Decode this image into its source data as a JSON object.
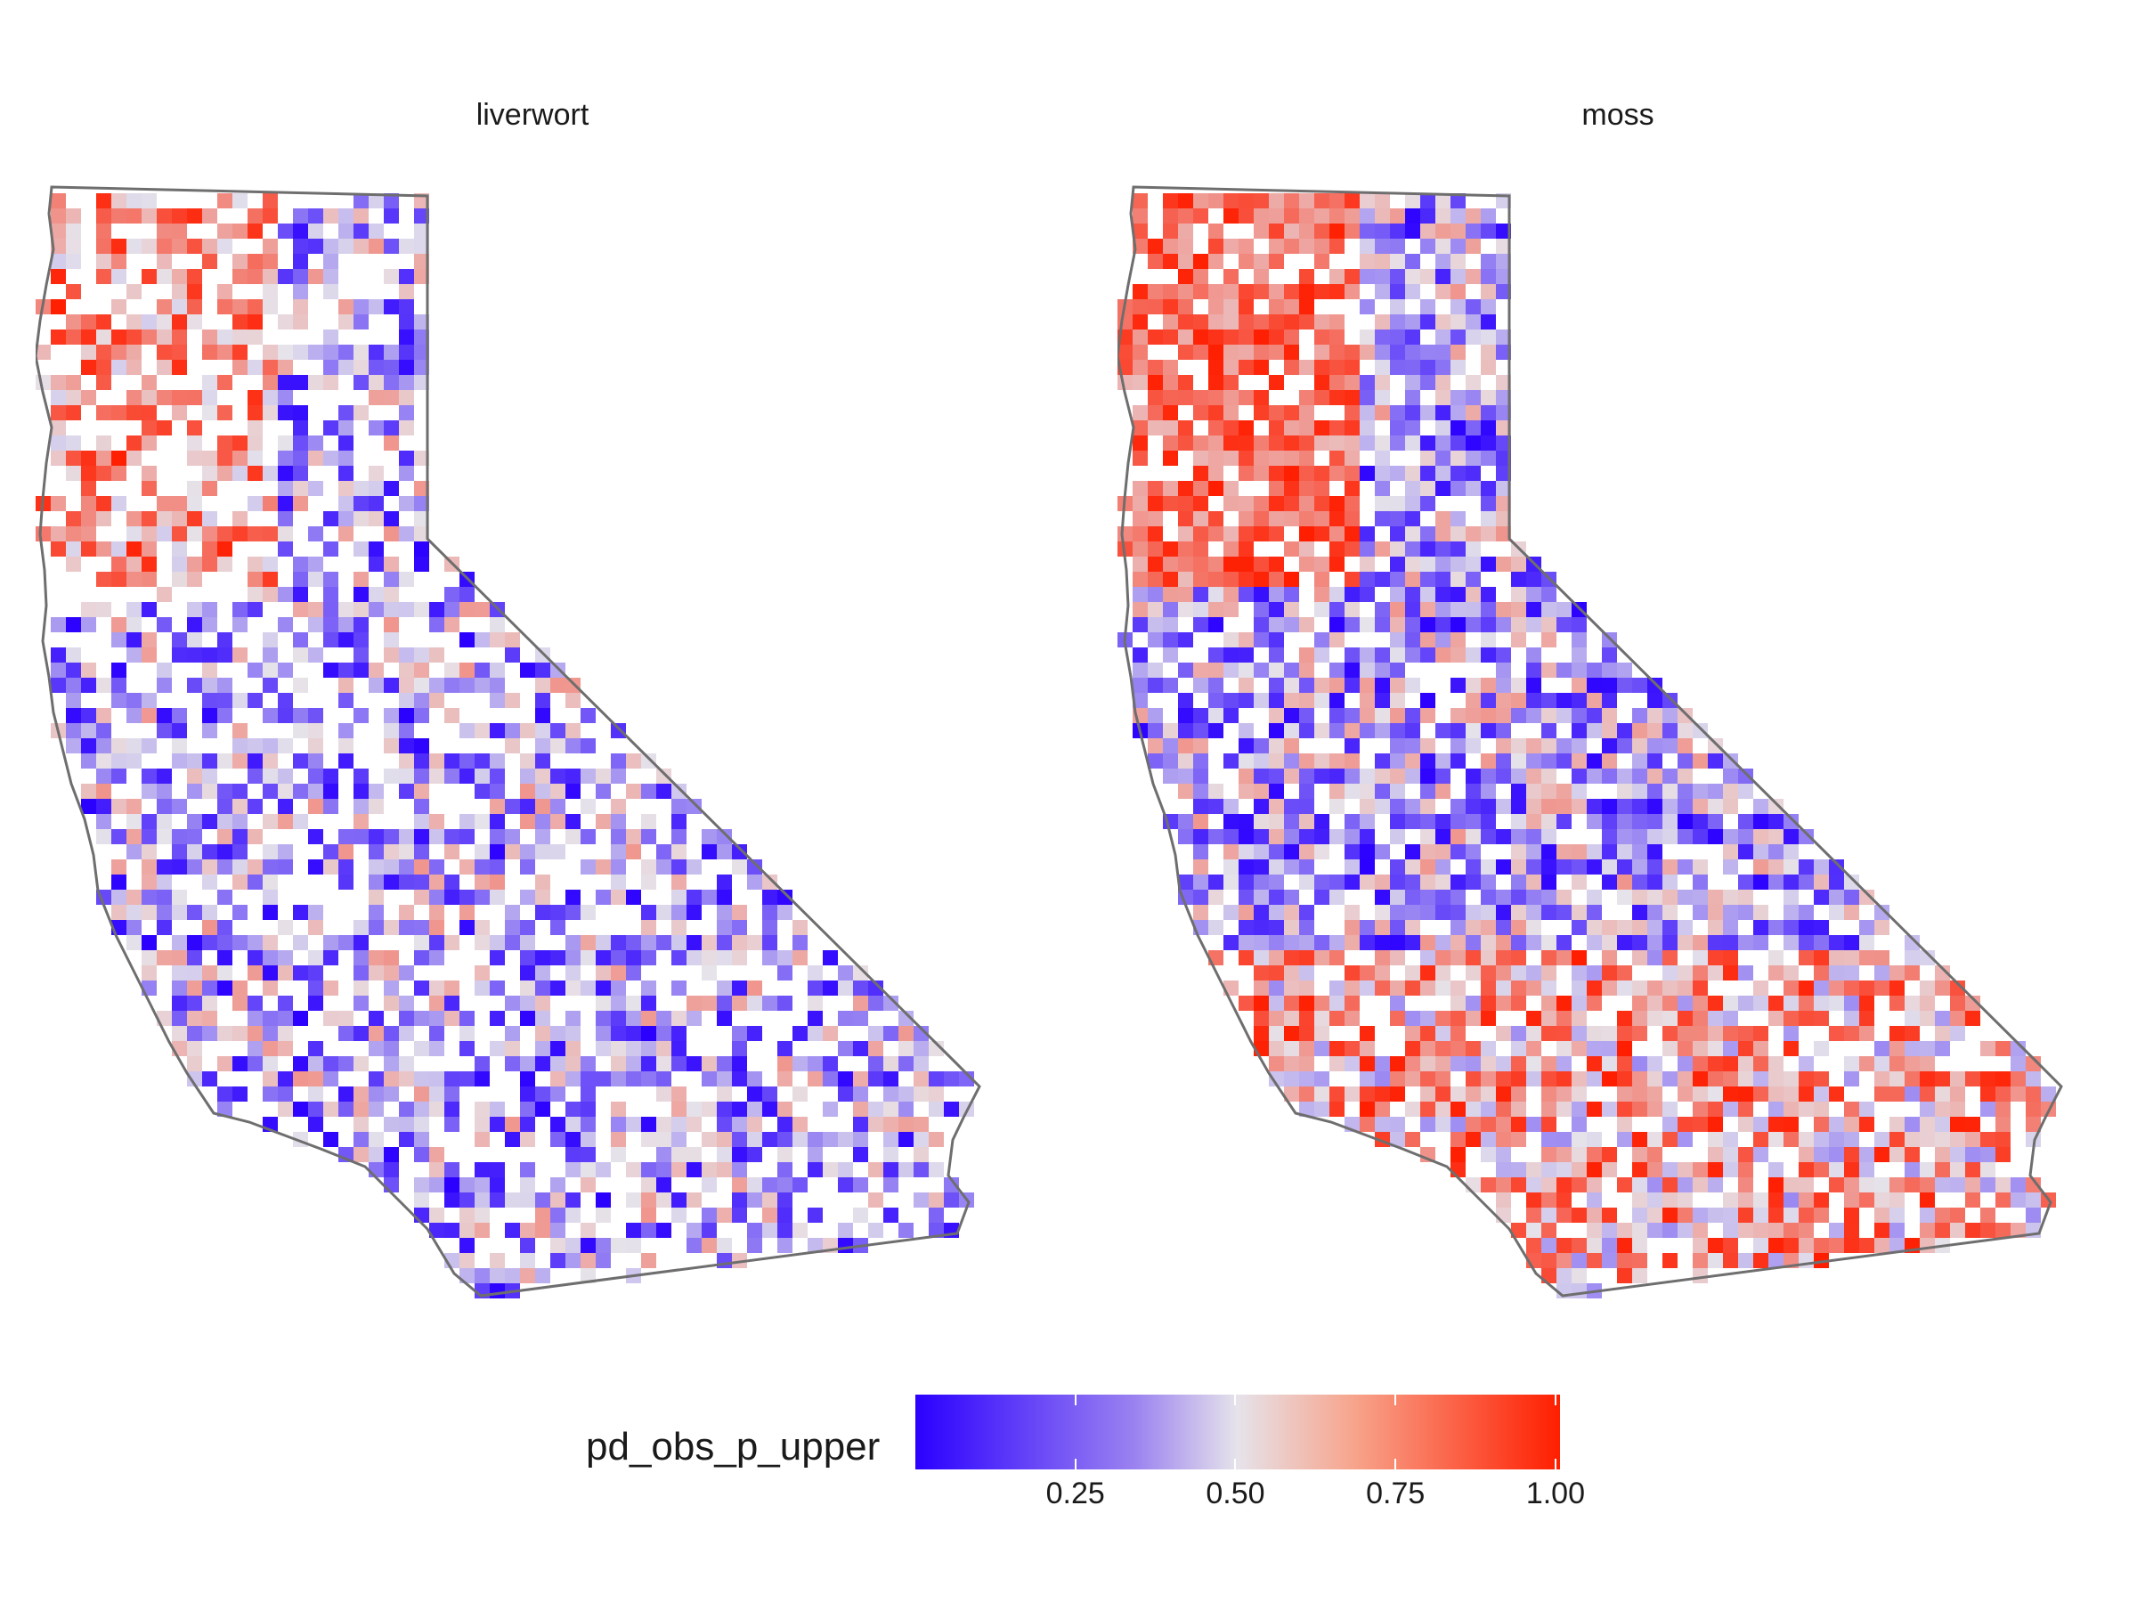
{
  "panels": [
    {
      "title": "liverwort",
      "cells": [
        [
          13,
          -10
        ],
        [
          14,
          -10
        ],
        [
          15,
          -10
        ],
        [
          16,
          -10
        ],
        [
          17,
          -8
        ],
        [
          18,
          -9
        ],
        [
          19,
          -10
        ],
        [
          20,
          -10
        ],
        [
          21,
          -10
        ],
        [
          22,
          -10
        ],
        [
          23,
          -10
        ],
        [
          24,
          -10
        ],
        [
          25,
          -9
        ],
        [
          26,
          -8
        ],
        [
          27,
          -8
        ],
        [
          28,
          -8
        ],
        [
          29,
          -9
        ],
        [
          30,
          -9
        ],
        [
          31,
          -10
        ],
        [
          32,
          -10
        ],
        [
          33,
          -10
        ],
        [
          34,
          -10
        ],
        [
          35,
          -9
        ],
        [
          36,
          -9
        ],
        [
          37,
          -8
        ],
        [
          38,
          -8
        ],
        [
          39,
          -7
        ],
        [
          40,
          -6
        ],
        [
          41,
          -6
        ],
        [
          42,
          -6
        ],
        [
          43,
          -6
        ],
        [
          44,
          -7
        ],
        [
          45,
          -7
        ],
        [
          46,
          -6
        ],
        [
          47,
          -5
        ],
        [
          48,
          -6
        ],
        [
          49,
          -5
        ],
        [
          50,
          -5
        ],
        [
          51,
          -5
        ],
        [
          52,
          -5
        ],
        [
          53,
          -4
        ],
        [
          54,
          -4
        ]
      ]
    },
    {
      "title": "moss",
      "cells": []
    }
  ],
  "legend": {
    "title": "pd_obs_p_upper",
    "ticks": [
      "0.25",
      "0.50",
      "0.75",
      "1.00"
    ],
    "color_low": "#2b00ff",
    "color_mid": "#e6e3ea",
    "color_high": "#ff1e00"
  }
}
